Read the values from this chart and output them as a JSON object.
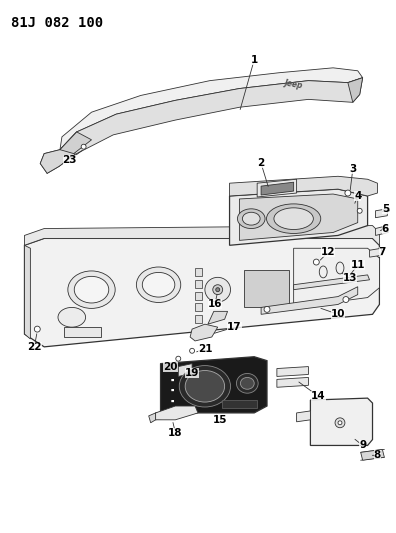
{
  "title": "81J 082 100",
  "bg": "#ffffff",
  "lc": "#333333",
  "tc": "#000000",
  "title_fs": 10,
  "lbl_fs": 7.5,
  "figsize": [
    3.96,
    5.33
  ],
  "dpi": 100
}
